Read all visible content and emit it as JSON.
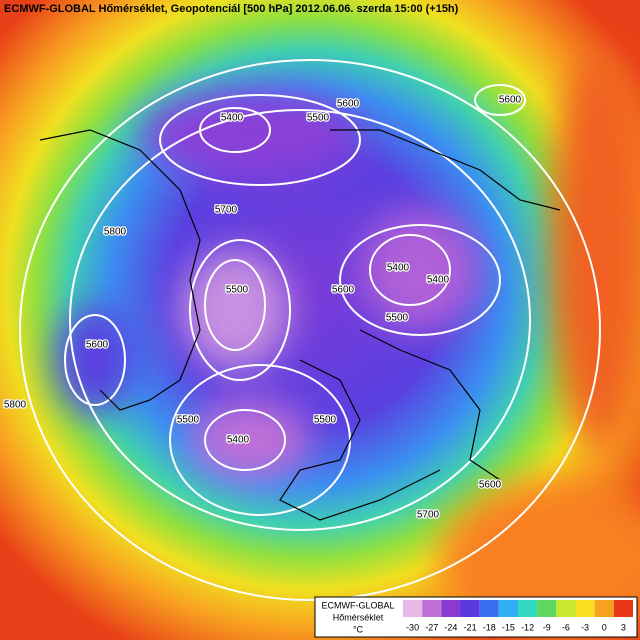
{
  "header": {
    "title": "ECMWF-GLOBAL Hőmérséklet, Geopotenciál [500 hPa] 2012.06.06. szerda 15:00 (+15h)"
  },
  "map": {
    "contour_labels": [
      5400,
      5500,
      5600,
      5600,
      5700,
      5800,
      5500,
      5600,
      5800,
      5500,
      5400,
      5500,
      5600,
      5400,
      5400,
      5500,
      5600,
      5700
    ]
  },
  "legend": {
    "source": "ECMWF-GLOBAL",
    "variable": "Hőmérséklet",
    "unit": "°C",
    "ticks": [
      -30,
      -27,
      -24,
      -21,
      -18,
      -15,
      -12,
      -9,
      -6,
      -3,
      0,
      3
    ],
    "colors": [
      "#e8b8e8",
      "#c070d8",
      "#8a3ad0",
      "#5a3ae0",
      "#3a70f0",
      "#30b0f0",
      "#30d8c0",
      "#60d860",
      "#c8e830",
      "#f8e020",
      "#f8a020",
      "#e83818"
    ]
  }
}
